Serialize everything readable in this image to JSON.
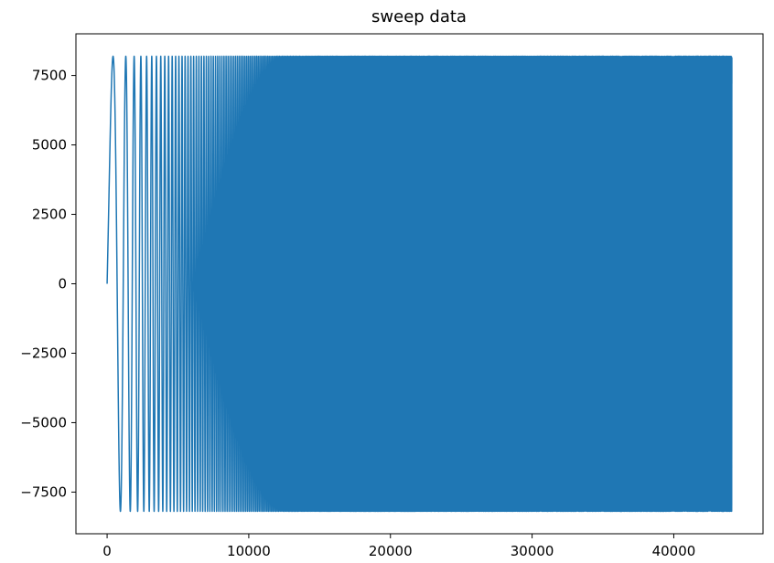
{
  "chart_data": {
    "type": "line",
    "title": "sweep data",
    "xlabel": "",
    "ylabel": "",
    "xlim": [
      -2200,
      46300
    ],
    "ylim": [
      -9000,
      9000
    ],
    "x_ticks": [
      0,
      10000,
      20000,
      30000,
      40000
    ],
    "x_tick_labels": [
      "0",
      "10000",
      "20000",
      "30000",
      "40000"
    ],
    "y_ticks": [
      -7500,
      -5000,
      -2500,
      0,
      2500,
      5000,
      7500
    ],
    "y_tick_labels": [
      "−7500",
      "−5000",
      "−2500",
      "0",
      "2500",
      "5000",
      "7500"
    ],
    "grid": false,
    "legend": false,
    "series": [
      {
        "kind": "linear-chirp sine sweep",
        "color": "#1f77b4",
        "amplitude": 8192,
        "x_start": 0,
        "x_end": 44100,
        "start_value": 0,
        "end_value": 7200,
        "start_cycles_per_sample": 0.00043,
        "end_cycles_per_sample": 0.035
      }
    ]
  }
}
